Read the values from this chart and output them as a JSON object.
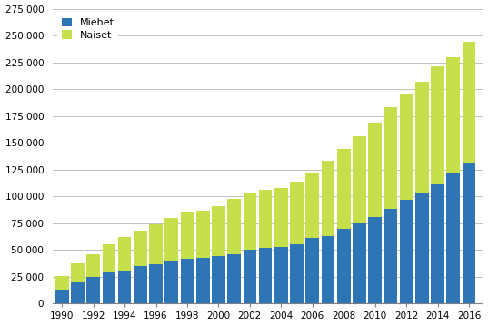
{
  "years": [
    1990,
    1991,
    1992,
    1993,
    1994,
    1995,
    1996,
    1997,
    1998,
    1999,
    2000,
    2001,
    2002,
    2003,
    2004,
    2005,
    2006,
    2007,
    2008,
    2009,
    2010,
    2011,
    2012,
    2013,
    2014,
    2015,
    2016
  ],
  "miehet": [
    13000,
    20000,
    25000,
    29000,
    31000,
    35000,
    37000,
    40000,
    42000,
    43000,
    44000,
    46000,
    50000,
    52000,
    53000,
    55000,
    61000,
    63000,
    70000,
    75000,
    81000,
    88000,
    97000,
    103000,
    111000,
    121000,
    131000
  ],
  "naiset_add": [
    13000,
    18000,
    21000,
    26000,
    31000,
    33000,
    37000,
    40000,
    43000,
    44000,
    47000,
    52000,
    54000,
    54000,
    55000,
    59000,
    61000,
    70000,
    74000,
    81000,
    87000,
    95000,
    98000,
    104000,
    110000,
    109000,
    113000
  ],
  "color_miehet": "#2E75B6",
  "color_naiset": "#C5E04A",
  "legend_labels": [
    "Miehet",
    "Naiset"
  ],
  "ylim": [
    0,
    275000
  ],
  "yticks": [
    0,
    25000,
    50000,
    75000,
    100000,
    125000,
    150000,
    175000,
    200000,
    225000,
    250000,
    275000
  ],
  "xtick_years": [
    1990,
    1992,
    1994,
    1996,
    1998,
    2000,
    2002,
    2004,
    2006,
    2008,
    2010,
    2012,
    2014,
    2016
  ],
  "background_color": "#ffffff",
  "grid_color": "#bfbfbf"
}
